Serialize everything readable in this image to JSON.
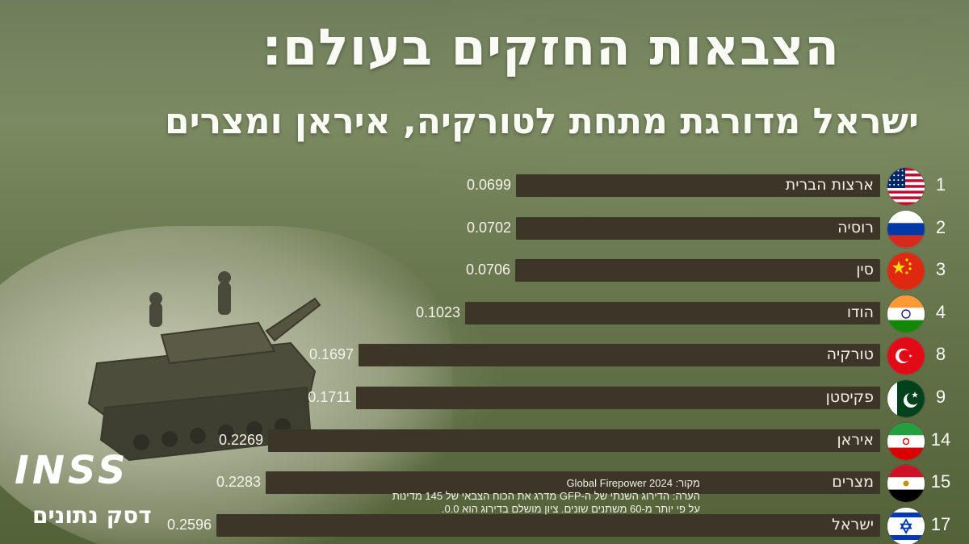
{
  "title": "הצבאות החזקים בעולם:",
  "subtitle": "ישראל מדורגת מתחת לטורקיה, איראן ומצרים",
  "source": {
    "line1": "מקור: Global Firepower 2024",
    "line2": "הערה: הדירוג השנתי של ה-GFP מדרג את הכוח הצבאי של 145 מדינות",
    "line3": "על פי יותר מ-60 משתנים שונים. ציון מושלם בדירוג הוא 0.0."
  },
  "logo": {
    "main": "INSS",
    "sub": "דסק נתונים"
  },
  "colors": {
    "bar": "#3b3628",
    "text": "#fbfbf5"
  },
  "chart_data": {
    "type": "bar",
    "orientation": "horizontal",
    "direction": "right-to-left",
    "grid": false,
    "categories": [
      "ארצות הברית",
      "רוסיה",
      "סין",
      "הודו",
      "טורקיה",
      "פקיסטן",
      "איראן",
      "מצרים",
      "ישראל"
    ],
    "ranks": [
      "1",
      "2",
      "3",
      "4",
      "8",
      "9",
      "14",
      "15",
      "17"
    ],
    "values": [
      0.0699,
      0.0702,
      0.0706,
      0.1023,
      0.1697,
      0.1711,
      0.2269,
      0.2283,
      0.2596
    ],
    "value_labels": [
      "0.0699",
      "0.0702",
      "0.0706",
      "0.1023",
      "0.1697",
      "0.1711",
      "0.2269",
      "0.2283",
      "0.2596"
    ],
    "flags": [
      "us-flag-icon",
      "russia-flag-icon",
      "china-flag-icon",
      "india-flag-icon",
      "turkey-flag-icon",
      "pakistan-flag-icon",
      "iran-flag-icon",
      "egypt-flag-icon",
      "israel-flag-icon"
    ]
  }
}
